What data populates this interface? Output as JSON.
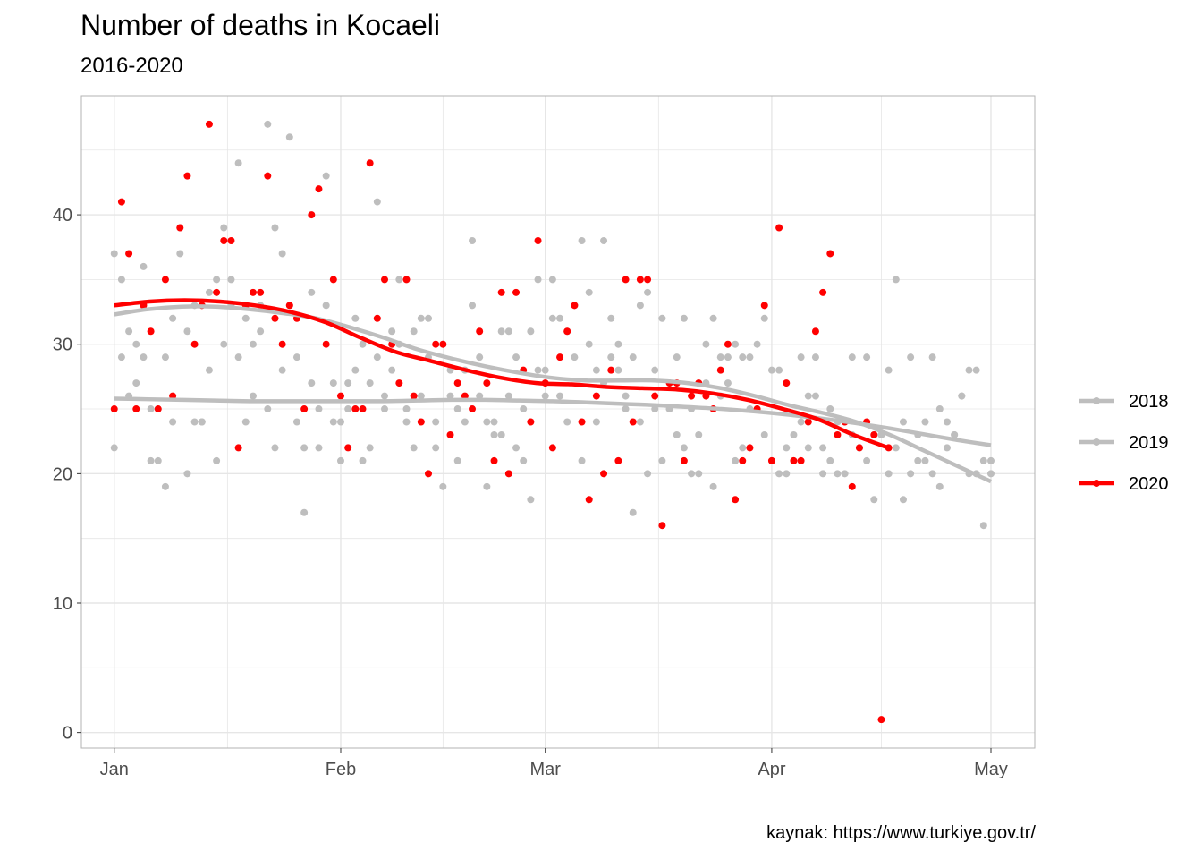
{
  "title": "Number of deaths in Kocaeli",
  "subtitle": "2016-2020",
  "caption": "kaynak: https://www.turkiye.gov.tr/",
  "colors": {
    "2018": "#bebebe",
    "2019": "#bebebe",
    "2020": "#ff0000",
    "grid": "#e6e6e6",
    "panel_border": "#b3b3b3"
  },
  "chart_data": {
    "type": "scatter",
    "x_unit": "day of year",
    "x_ticks": [
      {
        "label": "Jan",
        "value": 1
      },
      {
        "label": "Feb",
        "value": 32
      },
      {
        "label": "Mar",
        "value": 60
      },
      {
        "label": "Apr",
        "value": 91
      },
      {
        "label": "May",
        "value": 121
      }
    ],
    "xlim": [
      -3.5,
      127
    ],
    "y_ticks": [
      0,
      10,
      20,
      30,
      40
    ],
    "ylim": [
      -1.2,
      49.2
    ],
    "grid": true,
    "legend_position": "right",
    "legend": [
      "2018",
      "2019",
      "2020"
    ],
    "series": [
      {
        "name": "2018",
        "x": [
          1,
          2,
          3,
          4,
          5,
          6,
          7,
          8,
          9,
          10,
          11,
          12,
          13,
          14,
          15,
          16,
          17,
          18,
          19,
          20,
          21,
          22,
          23,
          24,
          25,
          26,
          27,
          28,
          29,
          30,
          31,
          32,
          33,
          34,
          35,
          36,
          37,
          38,
          39,
          40,
          41,
          42,
          43,
          44,
          45,
          46,
          47,
          48,
          49,
          50,
          51,
          52,
          53,
          54,
          55,
          56,
          57,
          58,
          59,
          60,
          61,
          62,
          63,
          64,
          65,
          66,
          67,
          68,
          69,
          70,
          71,
          72,
          73,
          74,
          75,
          76,
          77,
          78,
          79,
          80,
          81,
          82,
          83,
          84,
          85,
          86,
          87,
          88,
          89,
          90,
          91,
          92,
          93,
          94,
          95,
          96,
          97,
          98,
          99,
          100,
          101,
          102,
          103,
          104,
          105,
          106,
          107,
          108,
          109,
          110,
          111,
          112,
          113,
          114,
          115,
          116,
          117,
          118,
          119,
          120,
          121
        ],
        "y": [
          37,
          29,
          31,
          27,
          36,
          25,
          21,
          19,
          32,
          37,
          31,
          24,
          24,
          28,
          35,
          30,
          35,
          44,
          24,
          26,
          31,
          47,
          39,
          28,
          46,
          29,
          22,
          34,
          25,
          33,
          24,
          21,
          25,
          28,
          21,
          22,
          41,
          26,
          31,
          35,
          24,
          31,
          32,
          32,
          24,
          30,
          28,
          21,
          24,
          33,
          26,
          19,
          23,
          23,
          31,
          29,
          25,
          18,
          35,
          26,
          32,
          26,
          31,
          29,
          21,
          34,
          28,
          38,
          29,
          28,
          25,
          17,
          33,
          34,
          25,
          32,
          25,
          29,
          32,
          20,
          20,
          27,
          19,
          26,
          27,
          21,
          29,
          25,
          25,
          32,
          28,
          20,
          22,
          23,
          24,
          26,
          29,
          22,
          25,
          24,
          24,
          29,
          22,
          21,
          18,
          23,
          28,
          35,
          18,
          20,
          21,
          21,
          29,
          25,
          24,
          23,
          26,
          28,
          20,
          16,
          21
        ],
        "smooth": [
          25.8,
          25.75,
          25.7,
          25.65,
          25.6,
          25.6,
          25.6,
          25.6,
          25.6,
          25.65,
          25.7,
          25.7,
          25.65,
          25.6,
          25.5,
          25.4,
          25.3,
          25.15,
          25.0,
          24.8,
          24.55,
          24.25,
          23.9,
          23.5,
          23.05,
          22.6,
          22.2
        ]
      },
      {
        "name": "2019",
        "x": [
          1,
          2,
          3,
          4,
          5,
          6,
          7,
          8,
          9,
          10,
          11,
          12,
          13,
          14,
          15,
          16,
          17,
          18,
          19,
          20,
          21,
          22,
          23,
          24,
          25,
          26,
          27,
          28,
          29,
          30,
          31,
          32,
          33,
          34,
          35,
          36,
          37,
          38,
          39,
          40,
          41,
          42,
          43,
          44,
          45,
          46,
          47,
          48,
          49,
          50,
          51,
          52,
          53,
          54,
          55,
          56,
          57,
          58,
          59,
          60,
          61,
          62,
          63,
          64,
          65,
          66,
          67,
          68,
          69,
          70,
          71,
          72,
          73,
          74,
          75,
          76,
          77,
          78,
          79,
          80,
          81,
          82,
          83,
          84,
          85,
          86,
          87,
          88,
          89,
          90,
          91,
          92,
          93,
          94,
          95,
          96,
          97,
          98,
          99,
          100,
          101,
          102,
          103,
          104,
          105,
          106,
          107,
          108,
          109,
          110,
          111,
          112,
          113,
          114,
          115,
          116,
          117,
          118,
          119,
          120,
          121
        ],
        "y": [
          22,
          35,
          26,
          30,
          29,
          21,
          25,
          29,
          24,
          39,
          20,
          33,
          24,
          34,
          21,
          39,
          33,
          29,
          32,
          30,
          33,
          25,
          22,
          37,
          33,
          24,
          17,
          27,
          22,
          43,
          27,
          24,
          27,
          32,
          30,
          27,
          29,
          25,
          28,
          30,
          25,
          22,
          26,
          29,
          22,
          19,
          26,
          25,
          28,
          38,
          29,
          24,
          24,
          31,
          26,
          22,
          21,
          31,
          28,
          28,
          35,
          32,
          24,
          33,
          38,
          30,
          24,
          27,
          32,
          30,
          26,
          29,
          24,
          20,
          28,
          21,
          25,
          23,
          22,
          25,
          23,
          30,
          32,
          29,
          29,
          30,
          22,
          29,
          30,
          23,
          21,
          28,
          20,
          21,
          29,
          22,
          26,
          20,
          21,
          20,
          20,
          23,
          22,
          29,
          23,
          23,
          20,
          22,
          24,
          29,
          23,
          24,
          20,
          19,
          22,
          23,
          26,
          20,
          28,
          21,
          20
        ],
        "smooth": [
          32.3,
          32.7,
          32.9,
          32.9,
          32.7,
          32.4,
          32.0,
          31.3,
          30.5,
          29.6,
          28.9,
          28.3,
          27.8,
          27.4,
          27.2,
          27.2,
          27.2,
          27.0,
          26.6,
          26.0,
          25.3,
          24.7,
          24.0,
          23.0,
          21.8,
          20.6,
          19.4
        ]
      },
      {
        "name": "2020",
        "x": [
          1,
          2,
          3,
          4,
          5,
          6,
          7,
          8,
          9,
          10,
          11,
          12,
          13,
          14,
          15,
          16,
          17,
          18,
          19,
          20,
          21,
          22,
          23,
          24,
          25,
          26,
          27,
          28,
          29,
          30,
          31,
          32,
          33,
          34,
          35,
          36,
          37,
          38,
          39,
          40,
          41,
          42,
          43,
          44,
          45,
          46,
          47,
          48,
          49,
          50,
          51,
          52,
          53,
          54,
          55,
          56,
          57,
          58,
          59,
          60,
          61,
          62,
          63,
          64,
          65,
          66,
          67,
          68,
          69,
          70,
          71,
          72,
          73,
          74,
          75,
          76,
          77,
          78,
          79,
          80,
          81,
          82,
          83,
          84,
          85,
          86,
          87,
          88,
          89,
          90,
          91,
          92,
          93,
          94,
          95,
          96,
          97,
          98,
          99,
          100,
          101,
          102,
          103,
          104,
          105,
          106,
          107
        ],
        "y": [
          25,
          41,
          37,
          25,
          33,
          31,
          25,
          35,
          26,
          39,
          43,
          30,
          33,
          47,
          34,
          38,
          38,
          22,
          33,
          34,
          34,
          43,
          32,
          30,
          33,
          32,
          25,
          40,
          42,
          30,
          35,
          26,
          22,
          25,
          25,
          44,
          32,
          35,
          30,
          27,
          35,
          26,
          24,
          20,
          30,
          30,
          23,
          27,
          26,
          25,
          31,
          27,
          21,
          34,
          20,
          34,
          28,
          24,
          38,
          27,
          22,
          29,
          31,
          33,
          24,
          18,
          26,
          20,
          28,
          21,
          35,
          24,
          35,
          35,
          26,
          16,
          27,
          27,
          21,
          26,
          27,
          26,
          25,
          28,
          30,
          18,
          21,
          22,
          25,
          33,
          21,
          39,
          27,
          21,
          21,
          24,
          31,
          34,
          37,
          23,
          24,
          19,
          22,
          24,
          23,
          1,
          22
        ],
        "smooth": [
          33.0,
          33.3,
          33.4,
          33.3,
          33.0,
          32.5,
          31.7,
          30.5,
          29.4,
          28.7,
          28.0,
          27.4,
          27.0,
          26.9,
          26.7,
          26.6,
          26.5,
          26.2,
          25.7,
          25.0,
          24.2,
          23.0,
          22.0
        ]
      }
    ]
  }
}
